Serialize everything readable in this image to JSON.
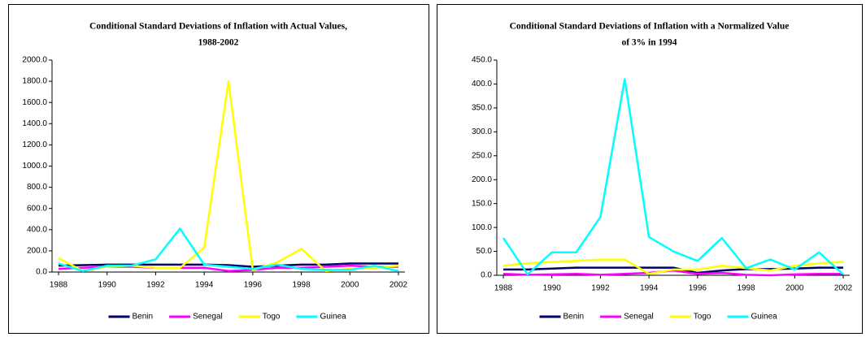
{
  "chart_data": [
    {
      "type": "line",
      "title": [
        "Conditional Standard Deviations of Inflation with Actual Values,",
        "1988-2002"
      ],
      "x": [
        1988,
        1989,
        1990,
        1991,
        1992,
        1993,
        1994,
        1995,
        1996,
        1997,
        1998,
        1999,
        2000,
        2001,
        2002
      ],
      "xlim": [
        1988,
        2002
      ],
      "xticks": [
        1988,
        1990,
        1992,
        1994,
        1996,
        1998,
        2000,
        2002
      ],
      "ylim": [
        0,
        2000
      ],
      "yticks": [
        {
          "value": 0,
          "label": "0.0"
        },
        {
          "value": 200,
          "label": "200.0"
        },
        {
          "value": 400,
          "label": "400.0"
        },
        {
          "value": 600,
          "label": "600.0"
        },
        {
          "value": 800,
          "label": "800.0"
        },
        {
          "value": 1000,
          "label": "1000.0"
        },
        {
          "value": 1200,
          "label": "1200.0"
        },
        {
          "value": 1400,
          "label": "1400.0"
        },
        {
          "value": 1600,
          "label": "1600.0"
        },
        {
          "value": 1800,
          "label": "1800.0"
        },
        {
          "value": 2000,
          "label": "2000.0"
        }
      ],
      "legend": "bottom",
      "series": [
        {
          "name": "Benin",
          "color": "#000066",
          "values": [
            60,
            65,
            70,
            70,
            70,
            70,
            70,
            65,
            50,
            60,
            70,
            70,
            80,
            80,
            80
          ]
        },
        {
          "name": "Senegal",
          "color": "#ff00ff",
          "values": [
            30,
            40,
            50,
            50,
            40,
            40,
            40,
            10,
            20,
            40,
            40,
            50,
            60,
            50,
            50
          ]
        },
        {
          "name": "Togo",
          "color": "#ffff00",
          "values": [
            130,
            10,
            50,
            60,
            40,
            40,
            230,
            1800,
            20,
            90,
            220,
            10,
            30,
            40,
            60
          ]
        },
        {
          "name": "Guinea",
          "color": "#00ffff",
          "values": [
            80,
            10,
            60,
            60,
            120,
            410,
            70,
            50,
            30,
            70,
            30,
            20,
            20,
            60,
            10
          ]
        }
      ]
    },
    {
      "type": "line",
      "title": [
        "Conditional Standard Deviations of Inflation with a Normalized Value",
        "of 3% in 1994"
      ],
      "x": [
        1988,
        1989,
        1990,
        1991,
        1992,
        1993,
        1994,
        1995,
        1996,
        1997,
        1998,
        1999,
        2000,
        2001,
        2002
      ],
      "xlim": [
        1988,
        2002
      ],
      "xticks": [
        1988,
        1990,
        1992,
        1994,
        1996,
        1998,
        2000,
        2002
      ],
      "ylim": [
        0,
        450
      ],
      "yticks": [
        {
          "value": 0,
          "label": "0.0"
        },
        {
          "value": 50,
          "label": "50.0"
        },
        {
          "value": 100,
          "label": "100.0"
        },
        {
          "value": 150,
          "label": "150.0"
        },
        {
          "value": 200,
          "label": "200.0"
        },
        {
          "value": 250,
          "label": "250.0"
        },
        {
          "value": 300,
          "label": "300.0"
        },
        {
          "value": 350,
          "label": "350.0"
        },
        {
          "value": 400,
          "label": "400.0"
        },
        {
          "value": 450,
          "label": "450.0"
        }
      ],
      "legend": "bottom",
      "series": [
        {
          "name": "Benin",
          "color": "#000066",
          "values": [
            12,
            12,
            14,
            16,
            16,
            16,
            16,
            16,
            5,
            10,
            13,
            13,
            14,
            16,
            16
          ]
        },
        {
          "name": "Senegal",
          "color": "#ff00ff",
          "values": [
            3,
            1,
            2,
            3,
            1,
            3,
            5,
            10,
            3,
            5,
            1,
            0,
            2,
            3,
            3
          ]
        },
        {
          "name": "Togo",
          "color": "#ffff00",
          "values": [
            20,
            25,
            28,
            30,
            33,
            33,
            3,
            12,
            12,
            20,
            15,
            10,
            20,
            25,
            28
          ]
        },
        {
          "name": "Guinea",
          "color": "#00ffff",
          "values": [
            78,
            2,
            48,
            48,
            122,
            410,
            80,
            50,
            30,
            78,
            15,
            33,
            12,
            48,
            2
          ]
        }
      ]
    }
  ]
}
